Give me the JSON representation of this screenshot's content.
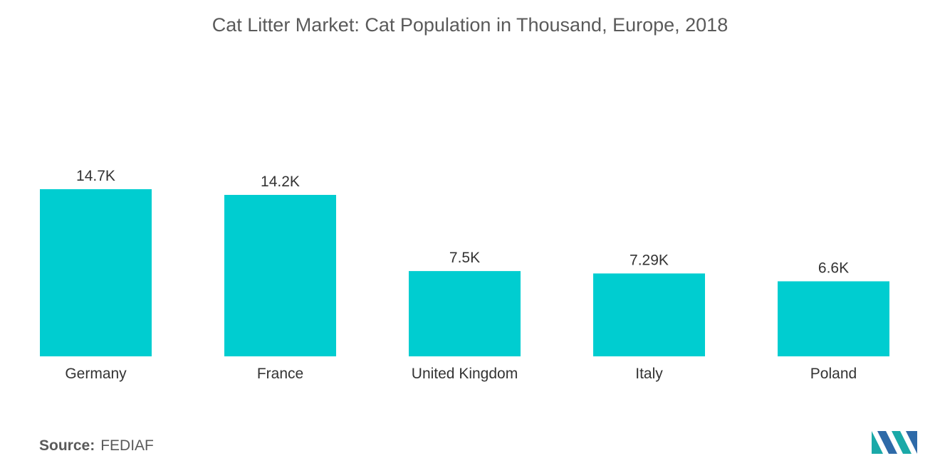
{
  "colors": {
    "bar": "#00cdd0",
    "text": "#333333",
    "title": "#5a5a5a",
    "logo_teal": "#1aa9a8",
    "logo_blue": "#2e6aa8"
  },
  "source": {
    "label": "Source:",
    "value": "FEDIAF"
  },
  "logo": {
    "icon": "mordor-intelligence-logo-icon"
  },
  "chart_data": {
    "type": "bar",
    "title": "Cat Litter Market: Cat Population in Thousand, Europe, 2018",
    "categories": [
      "Germany",
      "France",
      "United Kingdom",
      "Italy",
      "Poland"
    ],
    "values": [
      14700,
      14200,
      7500,
      7290,
      6600
    ],
    "data_labels": [
      "14.7K",
      "14.2K",
      "7.5K",
      "7.29K",
      "6.6K"
    ],
    "xlabel": "",
    "ylabel": "",
    "ylim": [
      0,
      14700
    ],
    "grid": false,
    "legend": "none"
  }
}
